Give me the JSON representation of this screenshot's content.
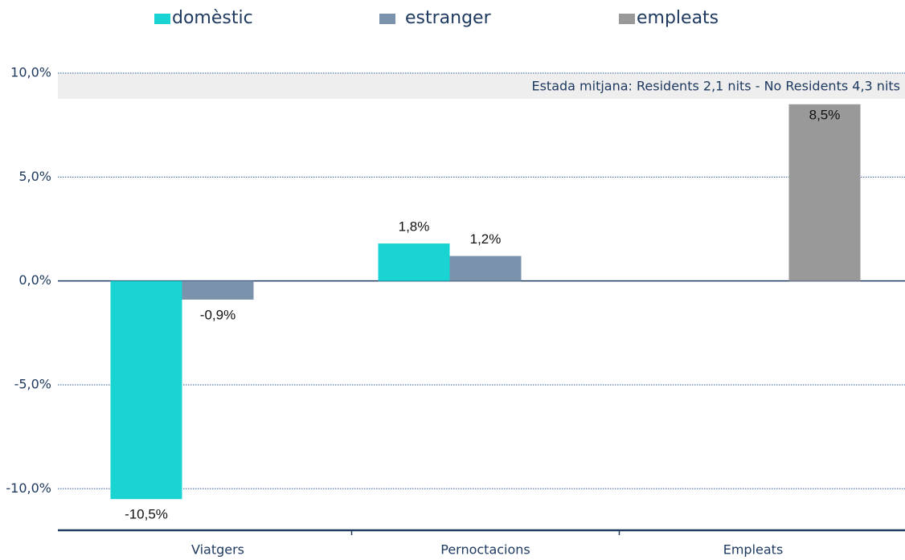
{
  "chart_data": {
    "type": "bar",
    "categories": [
      "Viatgers",
      "Pernoctacions",
      "Empleats"
    ],
    "series": [
      {
        "name": "domèstic",
        "color": "#1ad3d3",
        "values": [
          -10.5,
          1.8,
          null
        ],
        "value_labels": [
          "-10,5%",
          "1,8%",
          null
        ]
      },
      {
        "name": "estranger",
        "color": "#7a92ab",
        "values": [
          -0.9,
          1.2,
          null
        ],
        "value_labels": [
          "-0,9%",
          "1,2%",
          null
        ]
      },
      {
        "name": "empleats",
        "color": "#999999",
        "values": [
          null,
          null,
          8.5
        ],
        "value_labels": [
          null,
          null,
          "8,5%"
        ]
      }
    ],
    "annotation": "Estada mitjana: Residents 2,1 nits - No Residents 4,3 nits",
    "ylim": [
      -12,
      10
    ],
    "yticks": [
      {
        "value": -10,
        "label": "-10,0%"
      },
      {
        "value": -5,
        "label": "-5,0%"
      },
      {
        "value": 0,
        "label": "0,0%"
      },
      {
        "value": 5,
        "label": "5,0%"
      },
      {
        "value": 10,
        "label": "10,0%"
      }
    ],
    "grid": true,
    "legend": "top"
  }
}
